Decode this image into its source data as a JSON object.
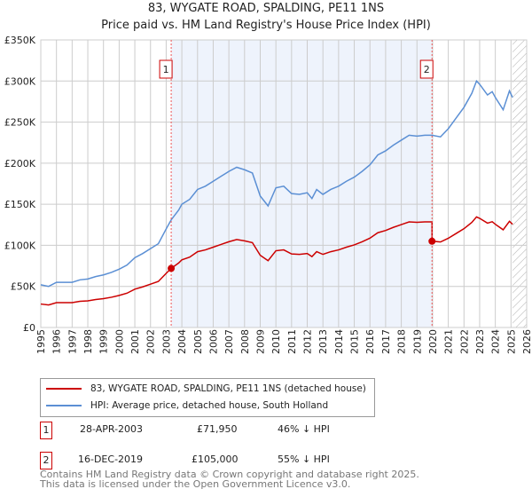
{
  "chart_data": {
    "type": "line",
    "title": "83, WYGATE ROAD, SPALDING, PE11 1NS",
    "subtitle": "Price paid vs. HM Land Registry's House Price Index (HPI)",
    "xlim": [
      1995,
      2026
    ],
    "ylim": [
      0,
      350000
    ],
    "yticks": [
      {
        "v": 0,
        "label": "£0"
      },
      {
        "v": 50000,
        "label": "£50K"
      },
      {
        "v": 100000,
        "label": "£100K"
      },
      {
        "v": 150000,
        "label": "£150K"
      },
      {
        "v": 200000,
        "label": "£200K"
      },
      {
        "v": 250000,
        "label": "£250K"
      },
      {
        "v": 300000,
        "label": "£300K"
      },
      {
        "v": 350000,
        "label": "£350K"
      }
    ],
    "xticks": [
      "1995",
      "1996",
      "1997",
      "1998",
      "1999",
      "2000",
      "2001",
      "2002",
      "2003",
      "2004",
      "2005",
      "2006",
      "2007",
      "2008",
      "2009",
      "2010",
      "2011",
      "2012",
      "2013",
      "2014",
      "2015",
      "2016",
      "2017",
      "2018",
      "2019",
      "2020",
      "2021",
      "2022",
      "2023",
      "2024",
      "2025",
      "2026"
    ],
    "grid": true,
    "colors": {
      "property": "#cc0000",
      "hpi": "#5b8fd4",
      "shade": "#eef3fc",
      "marker": "#cc0000"
    },
    "forecast_hatch_from": 2025.1,
    "hpi": {
      "name": "HPI: Average price, detached house, South Holland",
      "x": [
        1995,
        1995.5,
        1996,
        1997,
        1997.5,
        1998,
        1998.5,
        1999,
        1999.5,
        2000,
        2000.5,
        2001,
        2001.5,
        2002,
        2002.5,
        2003,
        2003.32,
        2003.8,
        2004,
        2004.5,
        2005,
        2005.5,
        2006,
        2006.5,
        2007,
        2007.5,
        2008,
        2008.5,
        2009,
        2009.5,
        2010,
        2010.5,
        2011,
        2011.5,
        2012,
        2012.3,
        2012.6,
        2013,
        2013.5,
        2014,
        2014.5,
        2015,
        2015.5,
        2016,
        2016.5,
        2017,
        2017.5,
        2018,
        2018.5,
        2019,
        2019.5,
        2019.96,
        2020.5,
        2021,
        2021.5,
        2022,
        2022.5,
        2022.8,
        2023,
        2023.5,
        2023.8,
        2024,
        2024.5,
        2024.9,
        2025.1
      ],
      "y": [
        52000,
        50000,
        55000,
        55000,
        58000,
        59000,
        62000,
        64000,
        67000,
        71000,
        76000,
        85000,
        90000,
        96000,
        102000,
        120000,
        131000,
        143000,
        150000,
        156000,
        168000,
        172000,
        178000,
        184000,
        190000,
        195000,
        192000,
        188000,
        160000,
        148000,
        170000,
        172000,
        163000,
        162000,
        164000,
        157000,
        168000,
        162000,
        168000,
        172000,
        178000,
        183000,
        190000,
        198000,
        210000,
        215000,
        222000,
        228000,
        234000,
        233000,
        234000,
        234000,
        232000,
        242000,
        255000,
        268000,
        285000,
        300000,
        296000,
        283000,
        287000,
        280000,
        265000,
        288000,
        280000
      ]
    },
    "property": {
      "name": "83, WYGATE ROAD, SPALDING, PE11 1NS (detached house)"
    },
    "sales": [
      {
        "id": "1",
        "x": 2003.32,
        "date": "28-APR-2003",
        "price": 71950,
        "price_label": "£71,950",
        "hpi_diff": "46% ↓ HPI"
      },
      {
        "id": "2",
        "x": 2019.96,
        "date": "16-DEC-2019",
        "price": 105000,
        "price_label": "£105,000",
        "hpi_diff": "55% ↓ HPI"
      }
    ]
  },
  "footer": {
    "line1": "Contains HM Land Registry data © Crown copyright and database right 2025.",
    "line2": "This data is licensed under the Open Government Licence v3.0."
  }
}
